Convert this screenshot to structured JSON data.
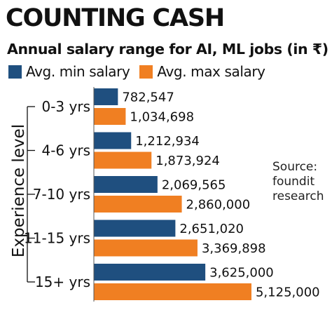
{
  "header": {
    "title": "COUNTING CASH",
    "subtitle": "Annual salary range for AI, ML jobs (in ₹)"
  },
  "source": {
    "line1": "Source:",
    "line2": "foundit",
    "line3": "research"
  },
  "colors": {
    "min": "#1f4f7f",
    "max": "#f07f22"
  },
  "chart_data": {
    "type": "bar",
    "orientation": "horizontal",
    "title": "COUNTING CASH",
    "subtitle": "Annual salary range for AI, ML jobs (in ₹)",
    "ylabel": "Experience level",
    "xlabel": "",
    "legend_position": "top",
    "categories": [
      "0-3 yrs",
      "4-6 yrs",
      "7-10 yrs",
      "11-15 yrs",
      "15+ yrs"
    ],
    "series": [
      {
        "name": "Avg. min salary",
        "values": [
          782547,
          1212934,
          2069565,
          2651020,
          3625000
        ],
        "labels": [
          "782,547",
          "1,212,934",
          "2,069,565",
          "2,651,020",
          "3,625,000"
        ]
      },
      {
        "name": "Avg. max salary",
        "values": [
          1034698,
          1873924,
          2860000,
          3369898,
          5125000
        ],
        "labels": [
          "1,034,698",
          "1,873,924",
          "2,860,000",
          "3,369,898",
          "5,125,000"
        ]
      }
    ],
    "xlim": [
      0,
      5125000
    ],
    "grid": false
  }
}
